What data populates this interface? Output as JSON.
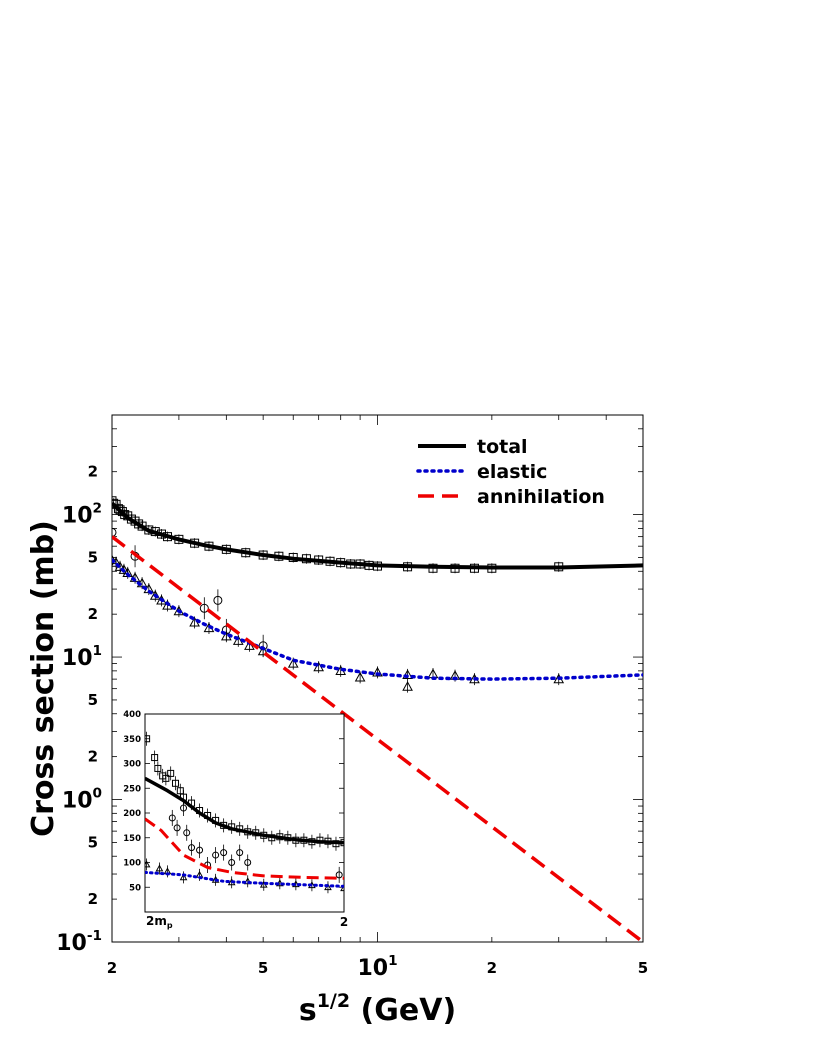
{
  "chart_data": [
    {
      "type": "line",
      "xlabel": "s^1/2 (GeV)",
      "ylabel": "Cross section (mb)",
      "xscale": "log",
      "yscale": "log",
      "xlim": [
        2,
        50
      ],
      "ylim": [
        0.1,
        500
      ],
      "x_major_ticks": [
        {
          "v": 2,
          "label": "2"
        },
        {
          "v": 5,
          "label": "5"
        },
        {
          "v": 10,
          "label": "10",
          "base": "10",
          "exp": "1"
        },
        {
          "v": 20,
          "label": "2"
        },
        {
          "v": 50,
          "label": "5"
        }
      ],
      "y_major_ticks": [
        {
          "v": 0.1,
          "base": "10",
          "exp": "-1"
        },
        {
          "v": 0.2,
          "label": "2"
        },
        {
          "v": 0.5,
          "label": "5"
        },
        {
          "v": 1,
          "base": "10",
          "exp": "0"
        },
        {
          "v": 2,
          "label": "2"
        },
        {
          "v": 5,
          "label": "5"
        },
        {
          "v": 10,
          "base": "10",
          "exp": "1"
        },
        {
          "v": 20,
          "label": "2"
        },
        {
          "v": 50,
          "label": "5"
        },
        {
          "v": 100,
          "base": "10",
          "exp": "2"
        },
        {
          "v": 200,
          "label": "2"
        }
      ],
      "legend": {
        "placement": "top-right",
        "entries": [
          {
            "name": "total",
            "color": "#000000",
            "style": "solid"
          },
          {
            "name": "elastic",
            "color": "#0000cc",
            "style": "dotted"
          },
          {
            "name": "annihilation",
            "color": "#ee0000",
            "style": "dashed"
          }
        ]
      },
      "series": [
        {
          "name": "total",
          "color": "#000000",
          "style": "solid",
          "x": [
            2.0,
            2.2,
            2.5,
            3.0,
            3.5,
            4.0,
            5.0,
            6.0,
            8.0,
            10.0,
            14.0,
            20.0,
            30.0,
            50.0
          ],
          "y": [
            120,
            95,
            77,
            67,
            61,
            57,
            52,
            49,
            46,
            44,
            43,
            42.5,
            42.5,
            44
          ]
        },
        {
          "name": "elastic",
          "color": "#0000cc",
          "style": "dotted",
          "x": [
            2.0,
            2.2,
            2.5,
            3.0,
            3.5,
            4.0,
            5.0,
            6.0,
            8.0,
            10.0,
            14.0,
            20.0,
            30.0,
            50.0
          ],
          "y": [
            48,
            38,
            29,
            21,
            17,
            14.5,
            11.5,
            9.5,
            8.2,
            7.6,
            7.1,
            7.0,
            7.1,
            7.5
          ]
        },
        {
          "name": "annihilation",
          "color": "#ee0000",
          "style": "dashed",
          "x": [
            2.0,
            50.0
          ],
          "y": [
            70,
            0.1
          ]
        }
      ],
      "data_points": {
        "squares": {
          "x": [
            2.0,
            2.02,
            2.05,
            2.08,
            2.1,
            2.13,
            2.16,
            2.2,
            2.25,
            2.3,
            2.35,
            2.4,
            2.5,
            2.6,
            2.7,
            2.8,
            3.0,
            3.3,
            3.6,
            4.0,
            4.5,
            5.0,
            5.5,
            6.0,
            6.5,
            7.0,
            7.5,
            8.0,
            8.5,
            9.0,
            9.5,
            10.0,
            12.0,
            14.0,
            16.0,
            18.0,
            20.0,
            30.0
          ],
          "y": [
            125,
            120,
            118,
            110,
            108,
            105,
            100,
            98,
            93,
            90,
            86,
            83,
            78,
            76,
            73,
            70,
            67,
            63,
            60,
            57,
            54,
            52,
            51,
            50,
            49,
            48,
            47,
            46,
            45,
            45,
            44,
            43.5,
            43,
            42,
            42,
            42,
            42,
            43
          ]
        },
        "circles": {
          "x": [
            2.0,
            2.3,
            3.5,
            3.8,
            4.0,
            5.0
          ],
          "y": [
            75,
            51,
            22,
            25,
            15.5,
            12
          ]
        },
        "triangles": {
          "x": [
            2.0,
            2.05,
            2.1,
            2.15,
            2.2,
            2.3,
            2.4,
            2.5,
            2.6,
            2.7,
            2.8,
            3.0,
            3.3,
            3.6,
            4.0,
            4.3,
            4.6,
            5.0,
            6.0,
            7.0,
            8.0,
            9.0,
            10.0,
            12.0,
            12.0,
            14.0,
            16.0,
            18.0,
            30.0
          ],
          "y": [
            48,
            46,
            43,
            41,
            39,
            36,
            33,
            30,
            27,
            25,
            23,
            21,
            17.5,
            16,
            14,
            13,
            12,
            11,
            9,
            8.5,
            8,
            7.2,
            7.8,
            7.5,
            6.2,
            7.6,
            7.4,
            7.0,
            7.0
          ]
        }
      }
    },
    {
      "type": "line",
      "inset": true,
      "xlim": [
        1.876,
        2.0
      ],
      "ylim": [
        0,
        400
      ],
      "x_tick_labels": [
        {
          "v": 1.876,
          "base": "2m",
          "sub": "p"
        },
        {
          "v": 2.0,
          "label": "2"
        }
      ],
      "y_ticks": [
        50,
        100,
        150,
        200,
        250,
        300,
        350,
        400
      ],
      "series": [
        {
          "name": "total",
          "color": "#000000",
          "style": "solid",
          "x": [
            1.876,
            1.89,
            1.9,
            1.91,
            1.92,
            1.93,
            1.95,
            1.97,
            1.985,
            2.0
          ],
          "y": [
            270,
            245,
            225,
            200,
            180,
            168,
            155,
            146,
            142,
            140
          ]
        },
        {
          "name": "annihilation",
          "color": "#ee0000",
          "style": "dashed",
          "x": [
            1.876,
            1.886,
            1.9,
            1.915,
            1.93,
            1.95,
            1.975,
            2.0
          ],
          "y": [
            188,
            165,
            115,
            90,
            80,
            73,
            70,
            68
          ]
        },
        {
          "name": "elastic",
          "color": "#0000cc",
          "style": "dotted",
          "x": [
            1.876,
            1.9,
            1.925,
            1.95,
            1.975,
            2.0
          ],
          "y": [
            80,
            75,
            62,
            58,
            55,
            52
          ]
        }
      ],
      "data_points": {
        "squares": {
          "x": [
            1.877,
            1.882,
            1.884,
            1.887,
            1.889,
            1.892,
            1.895,
            1.898,
            1.9,
            1.905,
            1.91,
            1.915,
            1.92,
            1.925,
            1.93,
            1.935,
            1.94,
            1.945,
            1.95,
            1.955,
            1.96,
            1.965,
            1.97,
            1.975,
            1.98,
            1.985,
            1.99,
            1.995,
            2.0
          ],
          "y": [
            350,
            312,
            290,
            275,
            270,
            280,
            260,
            245,
            232,
            220,
            205,
            195,
            185,
            175,
            172,
            168,
            162,
            160,
            155,
            150,
            152,
            150,
            145,
            145,
            142,
            145,
            143,
            138,
            140
          ]
        },
        "circles": {
          "x": [
            1.893,
            1.896,
            1.9,
            1.902,
            1.905,
            1.91,
            1.915,
            1.92,
            1.925,
            1.93,
            1.935,
            1.94,
            1.997
          ],
          "y": [
            190,
            170,
            210,
            160,
            130,
            125,
            95,
            115,
            120,
            100,
            120,
            100,
            75
          ]
        },
        "triangles": {
          "x": [
            1.877,
            1.885,
            1.89,
            1.9,
            1.91,
            1.92,
            1.93,
            1.94,
            1.95,
            1.96,
            1.97,
            1.98,
            1.99,
            2.0
          ],
          "y": [
            96,
            88,
            82,
            70,
            75,
            65,
            60,
            62,
            55,
            58,
            56,
            54,
            50,
            48
          ]
        }
      }
    }
  ]
}
